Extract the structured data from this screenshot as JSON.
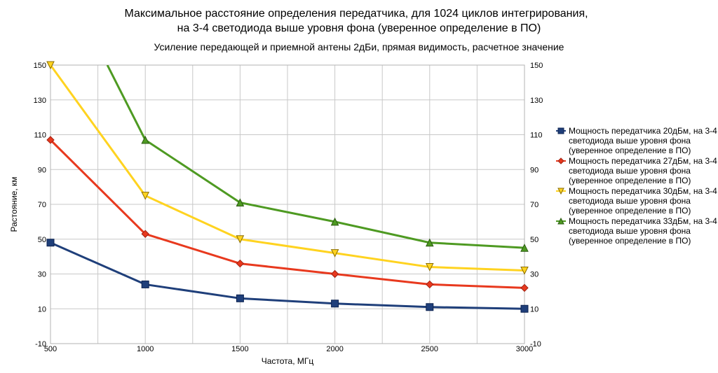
{
  "chart_data": {
    "type": "line",
    "title_lines": [
      "Максимальное расстояние определения передатчика, для 1024 циклов интегрирования,",
      "на 3-4 светодиода выше уровня фона (уверенное определение в ПО)"
    ],
    "subtitle": "Усиление передающей и приемной антены 2дБи, прямая видимость, расчетное значение",
    "xlabel": "Частота, МГц",
    "ylabel": "Растояние, км",
    "x": [
      500,
      1000,
      1500,
      2000,
      2500,
      3000
    ],
    "x_ticks": [
      "500",
      "1000",
      "1500",
      "2000",
      "2500",
      "3000"
    ],
    "xlim": [
      500,
      3000
    ],
    "y_ticks": [
      -10,
      10,
      30,
      50,
      70,
      90,
      110,
      130,
      150
    ],
    "ylim": [
      -10,
      150
    ],
    "grid": true,
    "legend_position": "right",
    "series": [
      {
        "name_lines": [
          "Мощность передатчика 20дБм, на 3-4",
          "светодиода выше уровня фона",
          "(уверенное определение в ПО)"
        ],
        "values": [
          48,
          24,
          16,
          13,
          11,
          10
        ],
        "color": "#1f3f7a",
        "marker": "square"
      },
      {
        "name_lines": [
          "Мощность передатчика 27дБм, на 3-4",
          "светодиода выше уровня фона",
          "(уверенное определение в ПО)"
        ],
        "values": [
          107,
          53,
          36,
          30,
          24,
          22
        ],
        "color": "#e8391e",
        "marker": "diamond"
      },
      {
        "name_lines": [
          "Мощность передатчика 30дБм, на 3-4",
          "светодиода выше уровня фона",
          "(уверенное определение в ПО)"
        ],
        "values": [
          150,
          75,
          50,
          42,
          34,
          32
        ],
        "color": "#ffd320",
        "marker": "triangle-down"
      },
      {
        "name_lines": [
          "Мощность передатчика 33дБм, на 3-4",
          "светодиода выше уровня фона",
          "(уверенное определение в ПО)"
        ],
        "x_start": 800,
        "values_start": 150,
        "values": [
          null,
          107,
          71,
          60,
          48,
          45
        ],
        "color": "#4e9a22",
        "marker": "triangle-up"
      }
    ]
  }
}
